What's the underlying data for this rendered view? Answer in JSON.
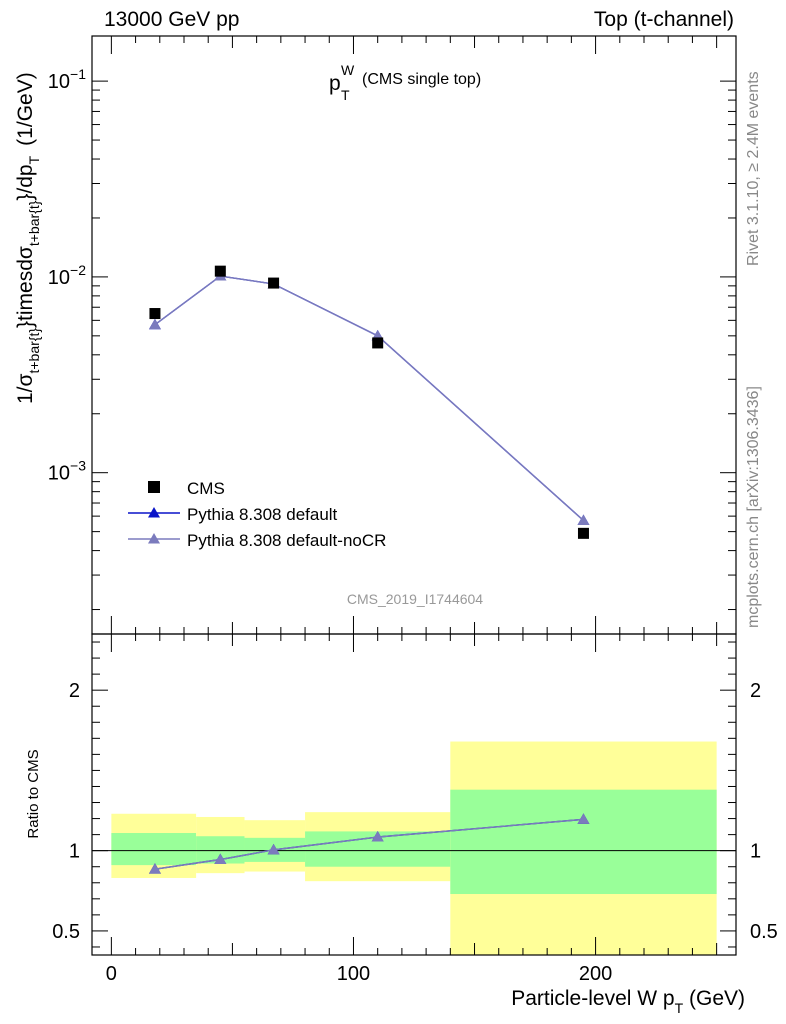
{
  "header": {
    "left": "13000 GeV pp",
    "right": "Top (t-channel)"
  },
  "side_notes": {
    "rivet": "Rivet 3.1.10, ≥ 2.4M events",
    "site": "mcplots.cern.ch [arXiv:1306.3436]"
  },
  "chart_data": {
    "type": "line",
    "title_main": "p",
    "title_sub": "T",
    "title_sup": "W",
    "title_note": "(CMS single top)",
    "watermark": "CMS_2019_I1744604",
    "ylabel": "1/σ_{t+bar{t}}timesdσ_{t+bar{t}}/dp_T  (1/GeV)",
    "ylabel_parts": {
      "a": "1/σ",
      "a_sub": "t+bar{t}",
      "b": "}timesdσ",
      "b_sub": "t+bar{t}",
      "c": "}/dp",
      "c_sub": "T",
      "d": "(1/GeV)"
    },
    "xlabel_parts": {
      "main": "Particle-level W p",
      "sub": "T",
      "tail": " (GeV)"
    },
    "ratio_ylabel": "Ratio to CMS",
    "xlim": [
      -8,
      258
    ],
    "ylim": [
      0.00015,
      0.17
    ],
    "yscale": "log",
    "y_ticks": [
      {
        "value": 0.001,
        "base": "10",
        "exp": "−3"
      },
      {
        "value": 0.01,
        "base": "10",
        "exp": "−2"
      },
      {
        "value": 0.1,
        "base": "10",
        "exp": "−1"
      }
    ],
    "x_ticks": [
      {
        "value": 0,
        "label": "0"
      },
      {
        "value": 100,
        "label": "100"
      },
      {
        "value": 200,
        "label": "200"
      }
    ],
    "ratio_ylim": [
      0.35,
      2.35
    ],
    "ratio_ticks": [
      {
        "value": 0.5,
        "label": "0.5"
      },
      {
        "value": 1,
        "label": "1"
      },
      {
        "value": 2,
        "label": "2"
      }
    ],
    "bins": [
      {
        "lo": 0,
        "hi": 35,
        "inner": [
          0.91,
          1.11
        ],
        "outer": [
          0.83,
          1.23
        ]
      },
      {
        "lo": 35,
        "hi": 55,
        "inner": [
          0.92,
          1.09
        ],
        "outer": [
          0.86,
          1.21
        ]
      },
      {
        "lo": 55,
        "hi": 80,
        "inner": [
          0.93,
          1.08
        ],
        "outer": [
          0.87,
          1.19
        ]
      },
      {
        "lo": 80,
        "hi": 140,
        "inner": [
          0.9,
          1.12
        ],
        "outer": [
          0.81,
          1.24
        ]
      },
      {
        "lo": 140,
        "hi": 250,
        "inner": [
          0.73,
          1.38
        ],
        "outer": [
          0.35,
          1.68
        ]
      }
    ],
    "legend_position": "lower-left",
    "colors": {
      "data": "#000000",
      "default": "#0a14c8",
      "nocr": "#7b7bbd",
      "band_inner": "#99ff99",
      "band_outer": "#ffff99"
    },
    "series": [
      {
        "name": "CMS",
        "style": "marker-square",
        "x": [
          18,
          45,
          67,
          110,
          195
        ],
        "y": [
          0.0065,
          0.0107,
          0.0093,
          0.0046,
          0.00049
        ]
      },
      {
        "name": "Pythia 8.308 default",
        "style": "line-triangle",
        "x": [
          18,
          45,
          67,
          110,
          195
        ],
        "y": [
          0.0057,
          0.0101,
          0.0092,
          0.005,
          0.00057
        ],
        "ratio": [
          0.885,
          0.945,
          1.005,
          1.085,
          1.195
        ]
      },
      {
        "name": "Pythia 8.308 default-noCR",
        "style": "line-triangle",
        "x": [
          18,
          45,
          67,
          110,
          195
        ],
        "y": [
          0.0057,
          0.0101,
          0.0092,
          0.005,
          0.00057
        ],
        "ratio": [
          0.885,
          0.945,
          1.005,
          1.085,
          1.195
        ]
      }
    ]
  }
}
